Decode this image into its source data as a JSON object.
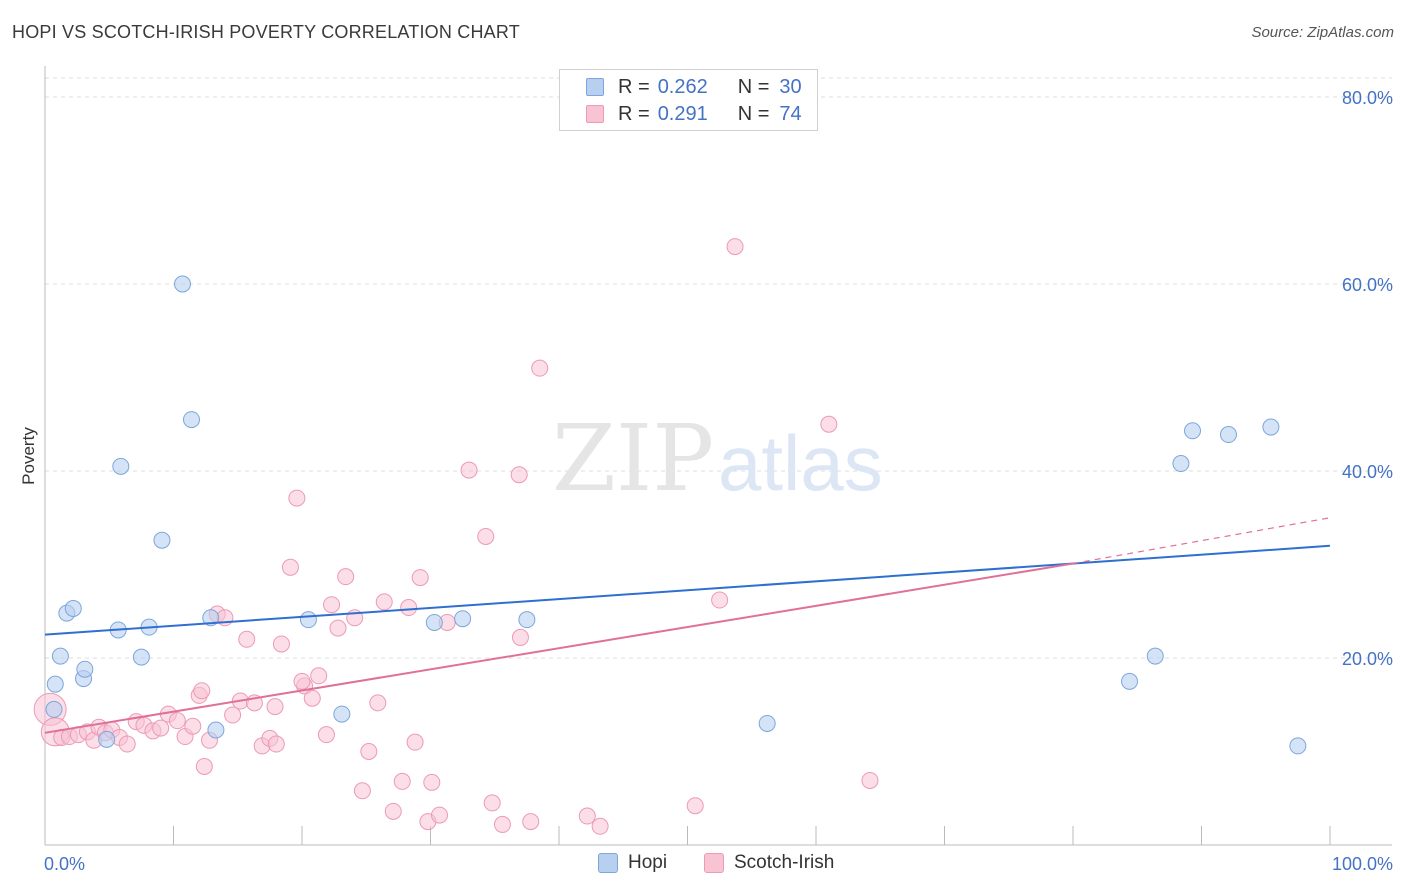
{
  "title": "HOPI VS SCOTCH-IRISH POVERTY CORRELATION CHART",
  "source": "Source: ZipAtlas.com",
  "watermark": {
    "zip": "ZIP",
    "atlas": "atlas"
  },
  "legend_top": [
    {
      "r_label": "R =",
      "r_value": "0.262",
      "n_label": "N =",
      "n_value": "30"
    },
    {
      "r_label": "R =",
      "r_value": "0.291",
      "n_label": "N =",
      "n_value": "74"
    }
  ],
  "colors": {
    "hopi_fill": "#b8d0f0",
    "hopi_stroke": "#7ea6dc",
    "hopi_line": "#2f6fcf",
    "scotch_fill": "#f8c3d3",
    "scotch_stroke": "#ec9ab5",
    "scotch_line": "#e0709a",
    "grid": "#dcdcdc",
    "tick_label": "#4472c4"
  },
  "chart_data": {
    "type": "scatter",
    "title": "HOPI VS SCOTCH-IRISH POVERTY CORRELATION CHART",
    "xlabel": "",
    "ylabel": "Poverty",
    "xlim": [
      0,
      100
    ],
    "ylim": [
      0,
      80
    ],
    "x_tick_labels": [
      "0.0%",
      "100.0%"
    ],
    "y_ticks": [
      20,
      40,
      60,
      80
    ],
    "y_tick_labels": [
      "20.0%",
      "40.0%",
      "60.0%",
      "80.0%"
    ],
    "legend": [
      "Hopi",
      "Scotch-Irish"
    ],
    "series": [
      {
        "name": "Hopi",
        "r": 0.262,
        "n": 30,
        "trend": {
          "x0": 0,
          "y0": 22.5,
          "x1": 100,
          "y1": 32.0
        },
        "points": [
          [
            0.7,
            14.5
          ],
          [
            0.8,
            17.2
          ],
          [
            1.2,
            20.2
          ],
          [
            1.7,
            24.8
          ],
          [
            2.2,
            25.3
          ],
          [
            3.0,
            17.8
          ],
          [
            3.1,
            18.8
          ],
          [
            4.8,
            11.3
          ],
          [
            5.7,
            23.0
          ],
          [
            5.9,
            40.5
          ],
          [
            7.5,
            20.1
          ],
          [
            8.1,
            23.3
          ],
          [
            9.1,
            32.6
          ],
          [
            10.7,
            60.0
          ],
          [
            11.4,
            45.5
          ],
          [
            12.9,
            24.3
          ],
          [
            13.3,
            12.3
          ],
          [
            20.5,
            24.1
          ],
          [
            23.1,
            14.0
          ],
          [
            30.3,
            23.8
          ],
          [
            32.5,
            24.2
          ],
          [
            37.5,
            24.1
          ],
          [
            56.2,
            13.0
          ],
          [
            84.4,
            17.5
          ],
          [
            86.4,
            20.2
          ],
          [
            88.4,
            40.8
          ],
          [
            89.3,
            44.3
          ],
          [
            92.1,
            43.9
          ],
          [
            95.4,
            44.7
          ],
          [
            97.5,
            10.6
          ]
        ]
      },
      {
        "name": "Scotch-Irish",
        "r": 0.291,
        "n": 74,
        "trend": {
          "x0": 0,
          "y0": 12.0,
          "x1": 80,
          "y1": 30.1,
          "dash_x1": 100,
          "dash_y1": 35.0
        },
        "points": [
          [
            0.4,
            14.5
          ],
          [
            0.8,
            12.1
          ],
          [
            1.3,
            11.5
          ],
          [
            1.9,
            11.6
          ],
          [
            2.6,
            11.8
          ],
          [
            3.3,
            12.1
          ],
          [
            3.8,
            11.2
          ],
          [
            4.2,
            12.6
          ],
          [
            4.7,
            12.0
          ],
          [
            5.2,
            12.3
          ],
          [
            5.8,
            11.5
          ],
          [
            6.4,
            10.8
          ],
          [
            7.1,
            13.2
          ],
          [
            7.7,
            12.8
          ],
          [
            8.4,
            12.2
          ],
          [
            9.0,
            12.5
          ],
          [
            9.6,
            14.0
          ],
          [
            10.3,
            13.3
          ],
          [
            10.9,
            11.6
          ],
          [
            11.5,
            12.7
          ],
          [
            12.0,
            16.0
          ],
          [
            12.4,
            8.4
          ],
          [
            12.8,
            11.2
          ],
          [
            13.4,
            24.7
          ],
          [
            14.0,
            24.3
          ],
          [
            14.6,
            13.9
          ],
          [
            15.2,
            15.4
          ],
          [
            15.7,
            22.0
          ],
          [
            16.3,
            15.2
          ],
          [
            16.9,
            10.6
          ],
          [
            17.5,
            11.4
          ],
          [
            17.9,
            14.8
          ],
          [
            18.4,
            21.5
          ],
          [
            19.1,
            29.7
          ],
          [
            19.6,
            37.1
          ],
          [
            20.2,
            17.0
          ],
          [
            20.8,
            15.7
          ],
          [
            21.3,
            18.1
          ],
          [
            21.9,
            11.8
          ],
          [
            22.3,
            25.7
          ],
          [
            22.8,
            23.2
          ],
          [
            23.4,
            28.7
          ],
          [
            24.1,
            24.3
          ],
          [
            24.7,
            5.8
          ],
          [
            25.2,
            10.0
          ],
          [
            25.9,
            15.2
          ],
          [
            26.4,
            26.0
          ],
          [
            27.1,
            3.6
          ],
          [
            27.8,
            6.8
          ],
          [
            28.3,
            25.4
          ],
          [
            28.8,
            11.0
          ],
          [
            29.2,
            28.6
          ],
          [
            29.8,
            2.5
          ],
          [
            30.1,
            6.7
          ],
          [
            30.7,
            3.2
          ],
          [
            31.3,
            23.8
          ],
          [
            33.0,
            40.1
          ],
          [
            34.3,
            33.0
          ],
          [
            34.8,
            4.5
          ],
          [
            35.6,
            2.2
          ],
          [
            36.9,
            39.6
          ],
          [
            37.0,
            22.2
          ],
          [
            37.8,
            2.5
          ],
          [
            38.5,
            51.0
          ],
          [
            42.2,
            3.1
          ],
          [
            43.2,
            2.0
          ],
          [
            50.6,
            4.2
          ],
          [
            52.5,
            26.2
          ],
          [
            53.7,
            64.0
          ],
          [
            61.0,
            45.0
          ],
          [
            64.2,
            6.9
          ],
          [
            20.0,
            17.5
          ],
          [
            18.0,
            10.8
          ],
          [
            12.2,
            16.5
          ]
        ]
      }
    ]
  }
}
